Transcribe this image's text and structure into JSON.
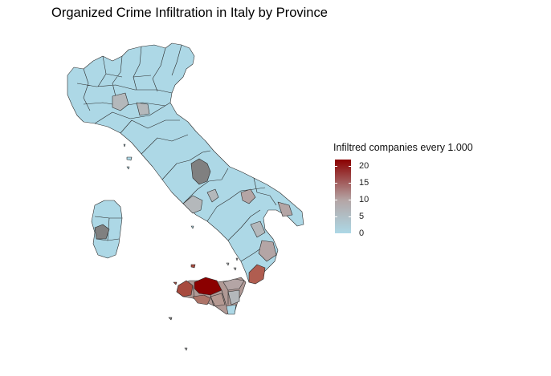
{
  "title": "Organized Crime Infiltration in Italy by Province",
  "legend": {
    "title": "Infiltred companies every 1.000",
    "ticks": [
      "0",
      "5",
      "10",
      "15",
      "20"
    ],
    "range": [
      0,
      22
    ],
    "colors": {
      "low": "#add8e6",
      "mid": "#b4a5a5",
      "high": "#8b0000",
      "missing": "#808080"
    }
  }
}
